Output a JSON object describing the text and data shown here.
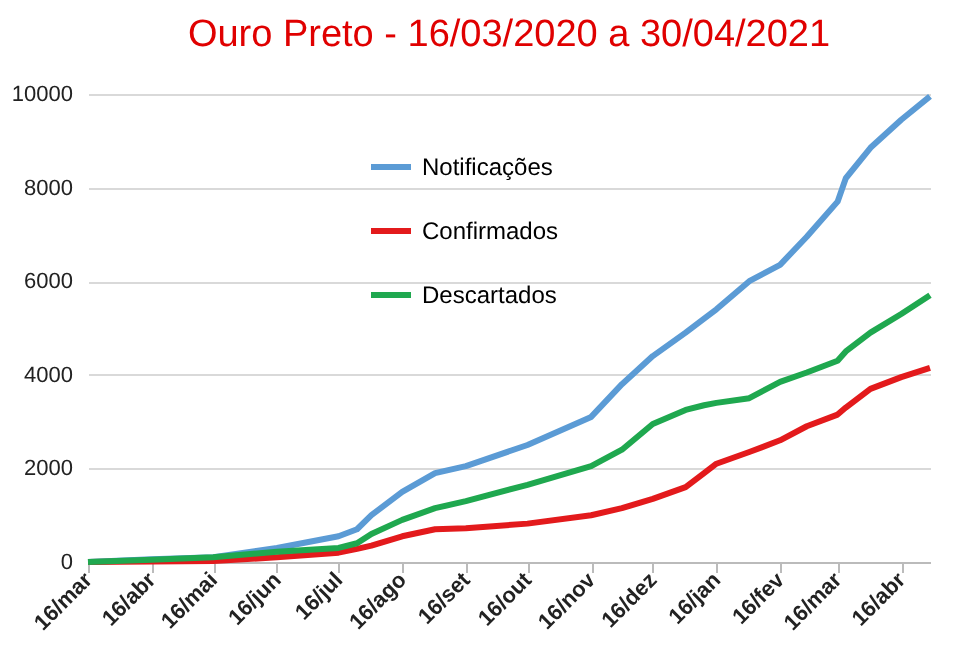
{
  "chart_data": {
    "type": "line",
    "title": "Ouro Preto - 16/03/2020 a 30/04/2021",
    "x": [
      "2020-03-16",
      "2020-04-16",
      "2020-05-16",
      "2020-06-16",
      "2020-07-16",
      "2020-07-25",
      "2020-08-01",
      "2020-08-16",
      "2020-09-01",
      "2020-09-16",
      "2020-10-16",
      "2020-11-16",
      "2020-12-01",
      "2020-12-16",
      "2021-01-01",
      "2021-01-10",
      "2021-01-16",
      "2021-02-01",
      "2021-02-16",
      "2021-03-01",
      "2021-03-16",
      "2021-03-20",
      "2021-04-01",
      "2021-04-16",
      "2021-04-30"
    ],
    "series": [
      {
        "name": "Notificações",
        "color": "#5b9bd5",
        "values": [
          0,
          60,
          100,
          300,
          550,
          700,
          1000,
          1500,
          1900,
          2050,
          2500,
          3100,
          3800,
          4400,
          4900,
          5200,
          5400,
          6000,
          6350,
          6950,
          7700,
          8200,
          8850,
          9450,
          9950
        ]
      },
      {
        "name": "Confirmados",
        "color": "#e31a1c",
        "values": [
          0,
          10,
          20,
          100,
          200,
          280,
          350,
          550,
          700,
          720,
          820,
          1000,
          1150,
          1350,
          1600,
          1900,
          2100,
          2350,
          2600,
          2900,
          3150,
          3300,
          3700,
          3950,
          4150
        ]
      },
      {
        "name": "Descartados",
        "color": "#1fa84f",
        "values": [
          0,
          50,
          100,
          220,
          300,
          400,
          600,
          900,
          1150,
          1300,
          1650,
          2050,
          2400,
          2950,
          3250,
          3350,
          3400,
          3500,
          3850,
          4050,
          4300,
          4500,
          4900,
          5300,
          5700
        ]
      }
    ],
    "xlim": [
      "2020-03-16",
      "2021-04-30"
    ],
    "xticks": [
      {
        "value": "2020-03-16",
        "label": "16/mar"
      },
      {
        "value": "2020-04-16",
        "label": "16/abr"
      },
      {
        "value": "2020-05-16",
        "label": "16/mai"
      },
      {
        "value": "2020-06-16",
        "label": "16/jun"
      },
      {
        "value": "2020-07-16",
        "label": "16/jul"
      },
      {
        "value": "2020-08-16",
        "label": "16/ago"
      },
      {
        "value": "2020-09-16",
        "label": "16/set"
      },
      {
        "value": "2020-10-16",
        "label": "16/out"
      },
      {
        "value": "2020-11-16",
        "label": "16/nov"
      },
      {
        "value": "2020-12-16",
        "label": "16/dez"
      },
      {
        "value": "2021-01-16",
        "label": "16/jan"
      },
      {
        "value": "2021-02-16",
        "label": "16/fev"
      },
      {
        "value": "2021-03-16",
        "label": "16/mar"
      },
      {
        "value": "2021-04-16",
        "label": "16/abr"
      }
    ],
    "ylim": [
      0,
      10000
    ],
    "yticks": [
      0,
      2000,
      4000,
      6000,
      8000,
      10000
    ],
    "grid": "y",
    "legend": "top left",
    "marker": "none",
    "line_style": "solid"
  }
}
